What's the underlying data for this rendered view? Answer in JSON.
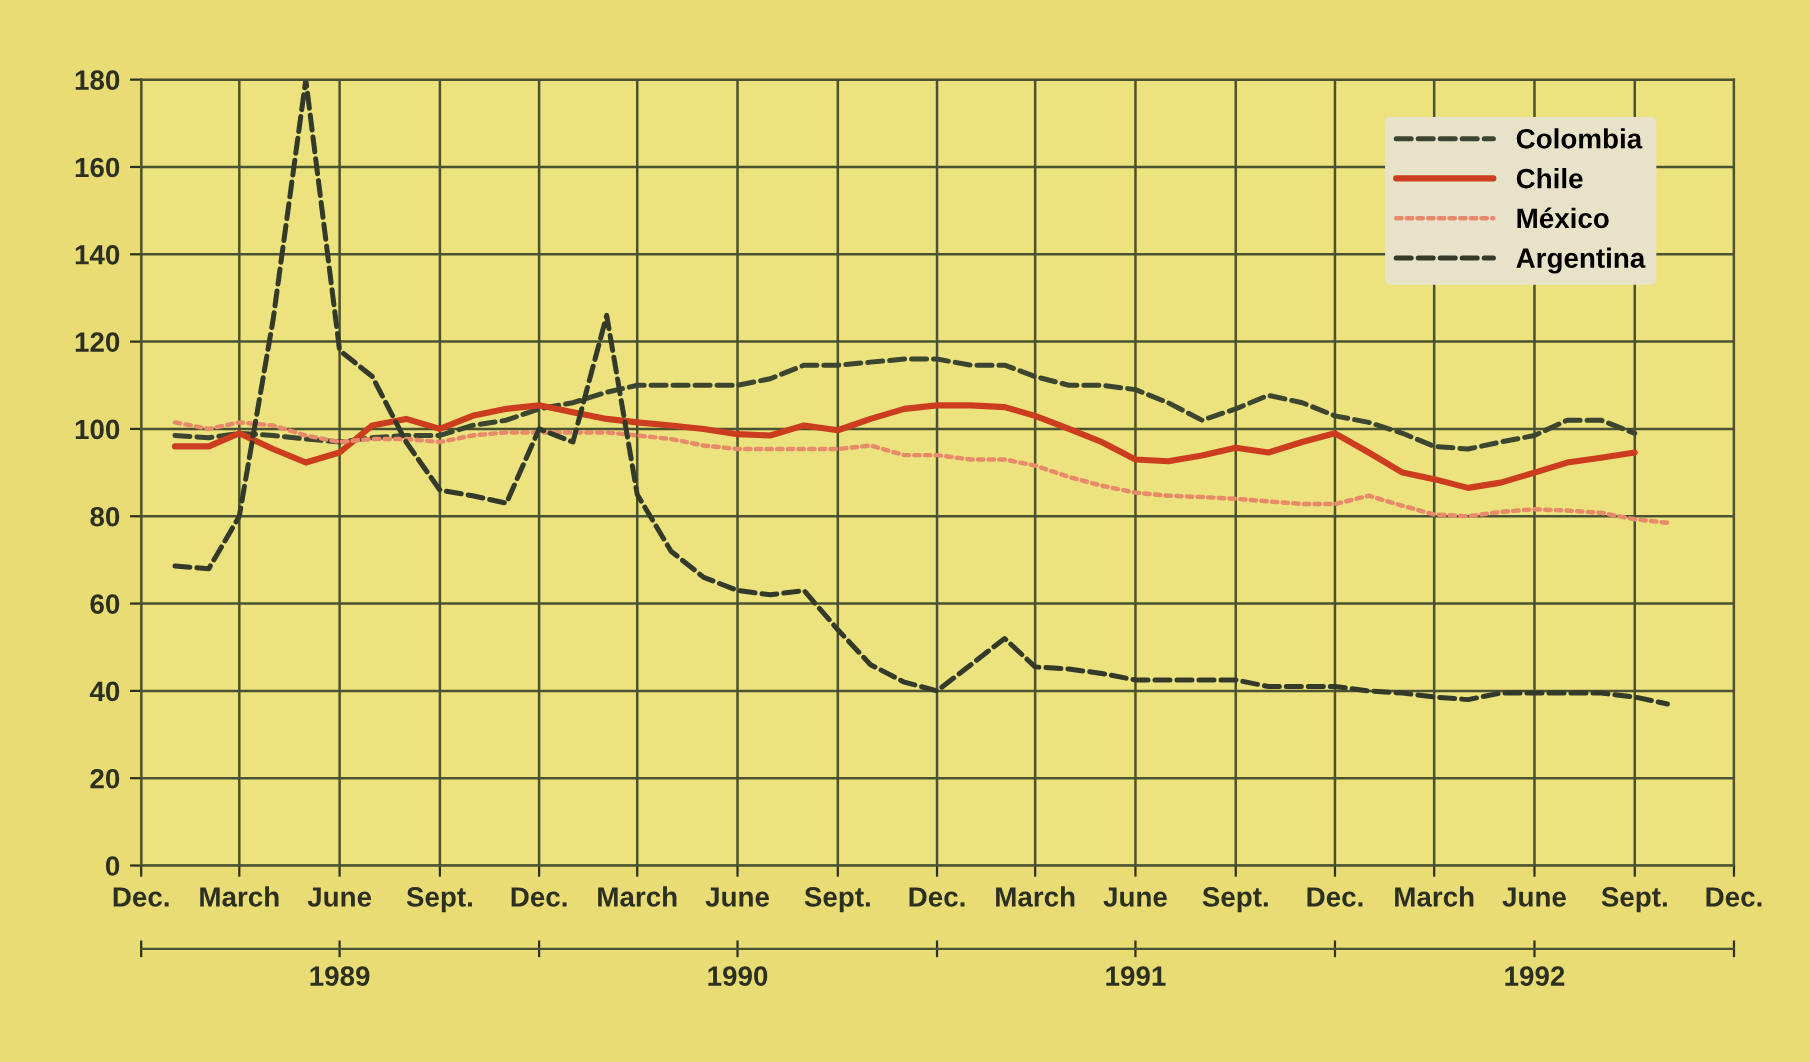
{
  "chart_data": {
    "type": "line",
    "xlim": [
      "1988-12",
      "1992-12"
    ],
    "xticks": [
      {
        "value": "1988-12",
        "label": "Dec."
      },
      {
        "value": "1989-03",
        "label": "March"
      },
      {
        "value": "1989-06",
        "label": "June"
      },
      {
        "value": "1989-09",
        "label": "Sept."
      },
      {
        "value": "1989-12",
        "label": "Dec."
      },
      {
        "value": "1990-03",
        "label": "March"
      },
      {
        "value": "1990-06",
        "label": "June"
      },
      {
        "value": "1990-09",
        "label": "Sept."
      },
      {
        "value": "1990-12",
        "label": "Dec."
      },
      {
        "value": "1991-03",
        "label": "March"
      },
      {
        "value": "1991-06",
        "label": "June"
      },
      {
        "value": "1991-09",
        "label": "Sept."
      },
      {
        "value": "1991-12",
        "label": "Dec."
      },
      {
        "value": "1992-03",
        "label": "March"
      },
      {
        "value": "1992-06",
        "label": "June"
      },
      {
        "value": "1992-09",
        "label": "Sept."
      },
      {
        "value": "1992-12",
        "label": "Dec."
      }
    ],
    "x2lim": [
      "1988-12",
      "1992-12"
    ],
    "x2ticks": [
      {
        "value": "1988-12",
        "label": null
      },
      {
        "value": "1989-06",
        "label": "1989"
      },
      {
        "value": "1989-12",
        "label": null
      },
      {
        "value": "1990-06",
        "label": "1990"
      },
      {
        "value": "1990-12",
        "label": null
      },
      {
        "value": "1991-06",
        "label": "1991"
      },
      {
        "value": "1991-12",
        "label": null
      },
      {
        "value": "1992-06",
        "label": "1992"
      },
      {
        "value": "1992-12",
        "label": null
      }
    ],
    "ylim": [
      0,
      180
    ],
    "yticks": [
      0,
      20,
      40,
      60,
      80,
      100,
      120,
      140,
      160,
      180
    ],
    "grid": true,
    "legend": "top right",
    "series": [
      {
        "name": "Colombia",
        "color": "#3c4530",
        "line_style": "dashed",
        "x": [
          "1989-01",
          "1989-02",
          "1989-03",
          "1989-04",
          "1989-05",
          "1989-06",
          "1989-07",
          "1989-08",
          "1989-09",
          "1989-10",
          "1989-11",
          "1989-12",
          "1990-01",
          "1990-02",
          "1990-03",
          "1990-04",
          "1990-05",
          "1990-06",
          "1990-07",
          "1990-08",
          "1990-09",
          "1990-10",
          "1990-11",
          "1990-12",
          "1991-01",
          "1991-02",
          "1991-03",
          "1991-04",
          "1991-05",
          "1991-06",
          "1991-07",
          "1991-08",
          "1991-09",
          "1991-10",
          "1991-11",
          "1991-12",
          "1992-01",
          "1992-02",
          "1992-03",
          "1992-04",
          "1992-05",
          "1992-06",
          "1992-07",
          "1992-08",
          "1992-09"
        ],
        "values": [
          98.5,
          98,
          99,
          98.5,
          97.7,
          97,
          98,
          98.5,
          98.5,
          100.8,
          102,
          104.6,
          106,
          108.4,
          110,
          110,
          110,
          110,
          111.5,
          114.6,
          114.6,
          115.3,
          116,
          116,
          114.6,
          114.6,
          112,
          110,
          110,
          109,
          106,
          102,
          104.6,
          107.7,
          106,
          103,
          101.5,
          99,
          96,
          95.4,
          97,
          98.5,
          102,
          102,
          99
        ]
      },
      {
        "name": "Chile",
        "color": "#cc3d1f",
        "line_style": "solid",
        "x": [
          "1989-01",
          "1989-02",
          "1989-03",
          "1989-04",
          "1989-05",
          "1989-06",
          "1989-07",
          "1989-08",
          "1989-09",
          "1989-10",
          "1989-11",
          "1989-12",
          "1990-01",
          "1990-02",
          "1990-03",
          "1990-04",
          "1990-05",
          "1990-06",
          "1990-07",
          "1990-08",
          "1990-09",
          "1990-10",
          "1990-11",
          "1990-12",
          "1991-01",
          "1991-02",
          "1991-03",
          "1991-04",
          "1991-05",
          "1991-06",
          "1991-07",
          "1991-08",
          "1991-09",
          "1991-10",
          "1991-11",
          "1991-12",
          "1992-01",
          "1992-02",
          "1992-03",
          "1992-04",
          "1992-05",
          "1992-06",
          "1992-07",
          "1992-08",
          "1992-09"
        ],
        "values": [
          96,
          96,
          99,
          95.4,
          92.3,
          94.6,
          100.8,
          102.3,
          100,
          103,
          104.6,
          105.4,
          103.8,
          102.3,
          101.5,
          100.8,
          100,
          98.8,
          98.5,
          100.8,
          99.7,
          102.3,
          104.6,
          105.4,
          105.4,
          105,
          103,
          100,
          97,
          93,
          92.6,
          93.9,
          95.7,
          94.6,
          97,
          99,
          94.6,
          90,
          88.5,
          86.5,
          87.7,
          90,
          92.3,
          93.4,
          94.6
        ]
      },
      {
        "name": "México",
        "color": "#e8896a",
        "line_style": "dotted",
        "x": [
          "1989-01",
          "1989-02",
          "1989-03",
          "1989-04",
          "1989-05",
          "1989-06",
          "1989-07",
          "1989-08",
          "1989-09",
          "1989-10",
          "1989-11",
          "1989-12",
          "1990-01",
          "1990-02",
          "1990-03",
          "1990-04",
          "1990-05",
          "1990-06",
          "1990-07",
          "1990-08",
          "1990-09",
          "1990-10",
          "1990-11",
          "1990-12",
          "1991-01",
          "1991-02",
          "1991-03",
          "1991-04",
          "1991-05",
          "1991-06",
          "1991-07",
          "1991-08",
          "1991-09",
          "1991-10",
          "1991-11",
          "1991-12",
          "1992-01",
          "1992-02",
          "1992-03",
          "1992-04",
          "1992-05",
          "1992-06",
          "1992-07",
          "1992-08",
          "1992-09",
          "1992-10"
        ],
        "values": [
          101.5,
          100,
          101.5,
          100.8,
          98.5,
          97,
          97.7,
          97.7,
          97,
          98.5,
          99.2,
          99.2,
          99.2,
          99.2,
          98.5,
          97.7,
          96.2,
          95.4,
          95.4,
          95.4,
          95.4,
          96.2,
          94,
          94,
          93,
          93,
          91.6,
          89,
          87,
          85.4,
          84.7,
          84.4,
          84,
          83.4,
          82.8,
          82.8,
          84.7,
          82.4,
          80.4,
          80,
          81,
          81.6,
          81.3,
          80.8,
          79.3,
          78.5
        ]
      },
      {
        "name": "Argentina",
        "color": "#333a2a",
        "line_style": "dashed",
        "x": [
          "1989-01",
          "1989-02",
          "1989-03",
          "1989-04",
          "1989-05",
          "1989-06",
          "1989-07",
          "1989-08",
          "1989-09",
          "1989-10",
          "1989-11",
          "1989-12",
          "1990-01",
          "1990-02",
          "1990-03",
          "1990-04",
          "1990-05",
          "1990-06",
          "1990-07",
          "1990-08",
          "1990-09",
          "1990-10",
          "1990-11",
          "1990-12",
          "1991-01",
          "1991-02",
          "1991-03",
          "1991-04",
          "1991-05",
          "1991-06",
          "1991-07",
          "1991-08",
          "1991-09",
          "1991-10",
          "1991-11",
          "1991-12",
          "1992-01",
          "1992-02",
          "1992-03",
          "1992-04",
          "1992-05",
          "1992-06",
          "1992-07",
          "1992-08",
          "1992-09",
          "1992-10"
        ],
        "values": [
          68.6,
          68,
          80,
          125,
          180,
          118,
          112,
          97,
          86,
          84.7,
          83,
          100,
          97,
          126,
          85,
          72,
          66,
          63,
          62,
          63,
          54,
          46,
          42,
          40,
          46,
          52,
          45.5,
          45,
          44,
          42.5,
          42.5,
          42.5,
          42.5,
          41,
          41,
          41,
          40,
          39.5,
          38.6,
          38,
          39.5,
          39.5,
          39.5,
          39.5,
          38.6,
          37
        ]
      }
    ]
  }
}
